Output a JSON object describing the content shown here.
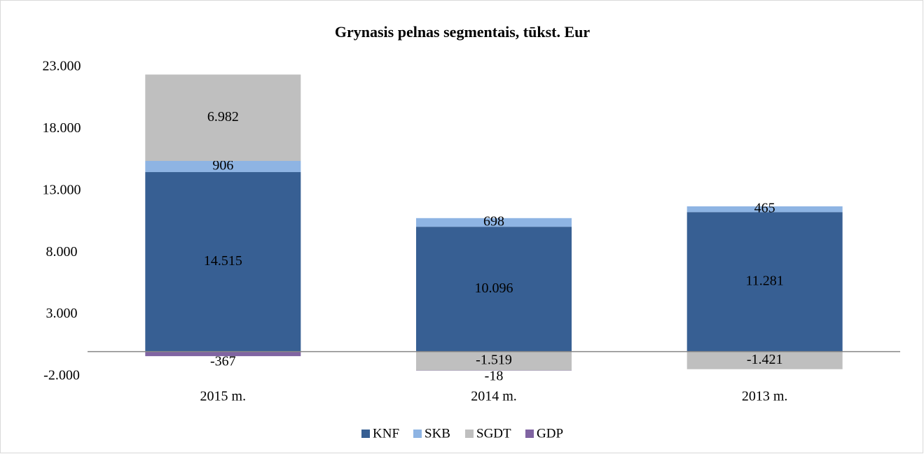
{
  "chart_data": {
    "type": "stacked_bar",
    "title": "Grynasis pelnas segmentais, tūkst. Eur",
    "categories": [
      "2015 m.",
      "2014 m.",
      "2013 m."
    ],
    "series": [
      {
        "name": "KNF",
        "color": "#375f93",
        "values": [
          14515,
          10096,
          11281
        ],
        "value_labels": [
          "14.515",
          "10.096",
          "11.281"
        ]
      },
      {
        "name": "SKB",
        "color": "#8eb4e3",
        "values": [
          906,
          698,
          465
        ],
        "value_labels": [
          "906",
          "698",
          "465"
        ]
      },
      {
        "name": "SGDT",
        "color": "#bfbfbf",
        "values": [
          6982,
          -1519,
          -1421
        ],
        "value_labels": [
          "6.982",
          "-1.519",
          "-1.421"
        ]
      },
      {
        "name": "GDP",
        "color": "#8064a2",
        "values": [
          -367,
          -18,
          null
        ],
        "value_labels": [
          "-367",
          "-18",
          null
        ]
      }
    ],
    "ylim": [
      -2000,
      23000
    ],
    "yticks": [
      {
        "value": -2000,
        "label": "-2.000"
      },
      {
        "value": 3000,
        "label": "3.000"
      },
      {
        "value": 8000,
        "label": "8.000"
      },
      {
        "value": 13000,
        "label": "13.000"
      },
      {
        "value": 18000,
        "label": "18.000"
      },
      {
        "value": 23000,
        "label": "23.000"
      }
    ],
    "grid": false,
    "legend": "bottom"
  }
}
